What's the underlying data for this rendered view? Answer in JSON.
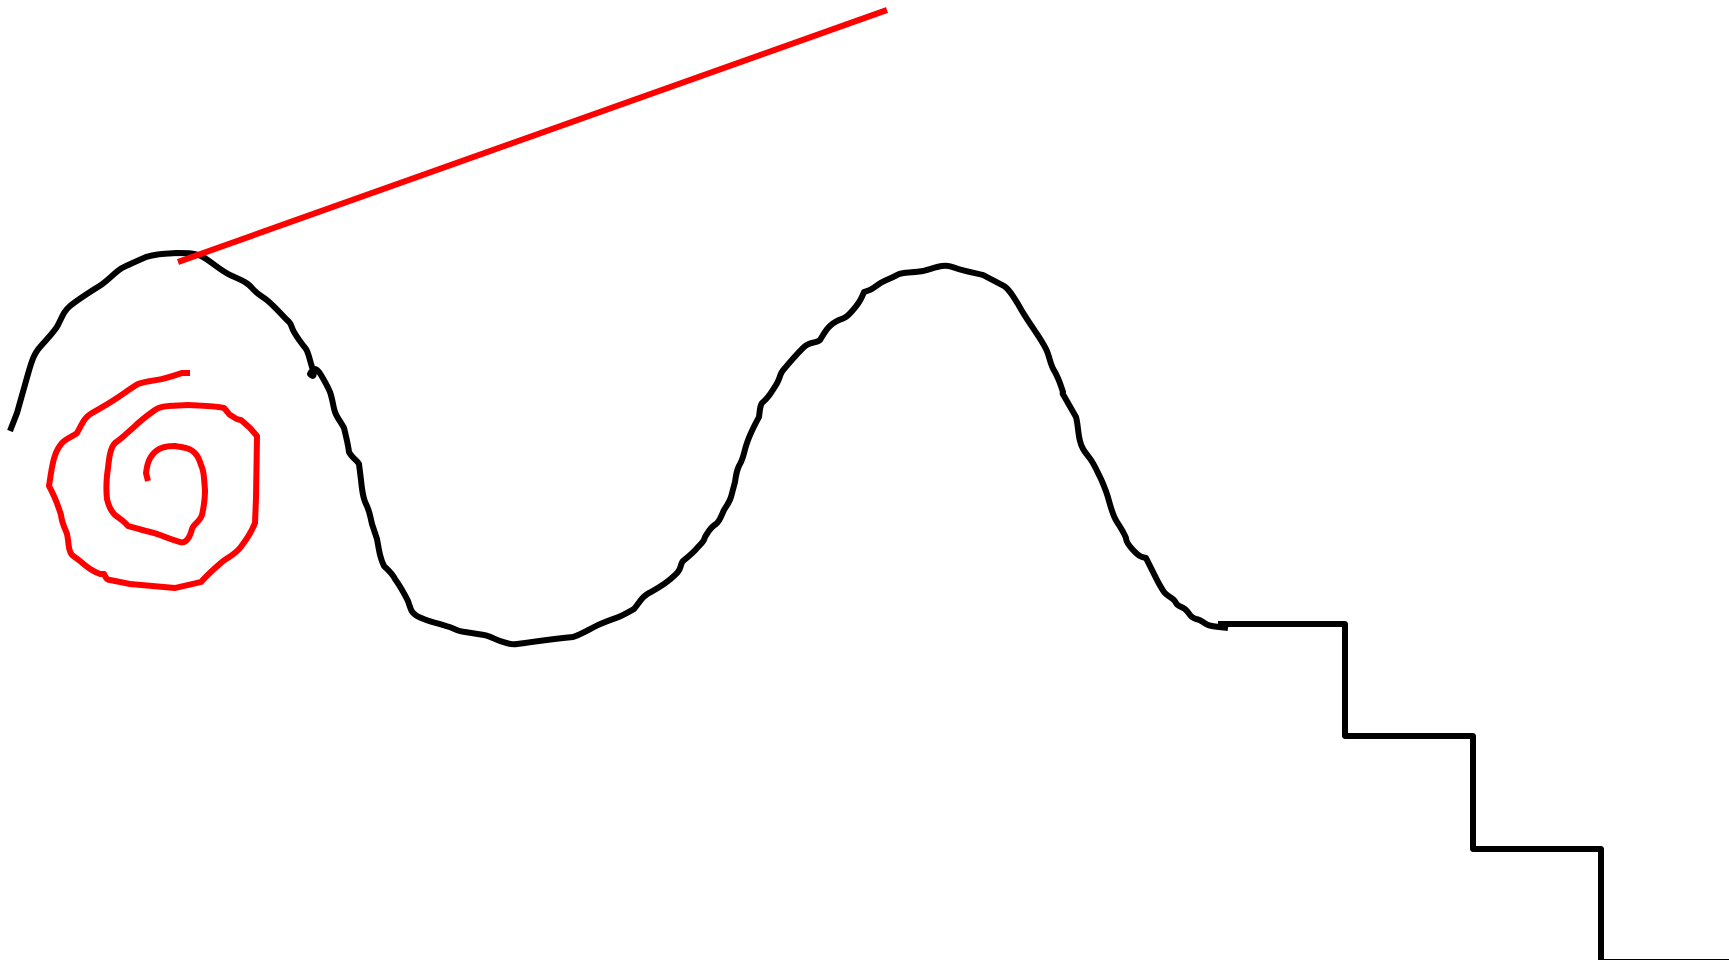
{
  "drawing": {
    "background": "#ffffff",
    "strokes": [
      {
        "name": "black-wavy-curve",
        "color": "#000000"
      },
      {
        "name": "black-staircase",
        "color": "#000000"
      },
      {
        "name": "red-straight-line",
        "color": "#ff0000"
      },
      {
        "name": "red-spiral",
        "color": "#ff0000"
      }
    ]
  }
}
